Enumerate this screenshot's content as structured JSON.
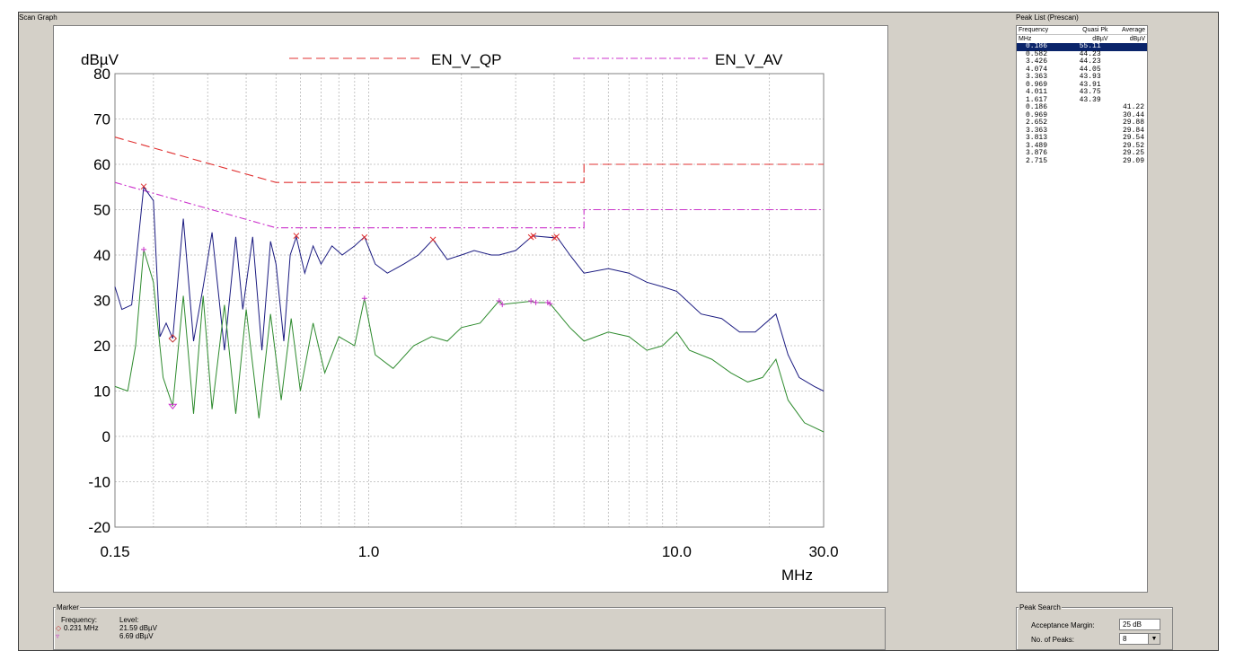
{
  "scan_graph": {
    "title": "Scan Graph"
  },
  "peak_list": {
    "title": "Peak List (Prescan)",
    "headers": [
      "Frequency",
      "Quasi Pk",
      "Average"
    ],
    "units": [
      "MHz",
      "dBµV",
      "dBµV"
    ],
    "rows": [
      [
        "0.186",
        "55.11",
        ""
      ],
      [
        "0.582",
        "44.23",
        ""
      ],
      [
        "3.426",
        "44.23",
        ""
      ],
      [
        "4.074",
        "44.05",
        ""
      ],
      [
        "3.363",
        "43.93",
        ""
      ],
      [
        "0.969",
        "43.91",
        ""
      ],
      [
        "4.011",
        "43.75",
        ""
      ],
      [
        "1.617",
        "43.39",
        ""
      ],
      [
        "0.186",
        "",
        "41.22"
      ],
      [
        "0.969",
        "",
        "30.44"
      ],
      [
        "2.652",
        "",
        "29.88"
      ],
      [
        "3.363",
        "",
        "29.84"
      ],
      [
        "3.813",
        "",
        "29.54"
      ],
      [
        "3.489",
        "",
        "29.52"
      ],
      [
        "3.876",
        "",
        "29.25"
      ],
      [
        "2.715",
        "",
        "29.09"
      ]
    ]
  },
  "marker": {
    "title": "Marker",
    "freq_label": "Frequency:",
    "level_label": "Level:",
    "frequency": "0.231 MHz",
    "level1": "21.59 dBµV",
    "level2": "6.69 dBµV"
  },
  "peak_search": {
    "title": "Peak Search",
    "margin_label": "Acceptance Margin:",
    "margin_value": "25 dB",
    "peaks_label": "No. of Peaks:",
    "peaks_value": "8"
  },
  "chart_data": {
    "type": "line",
    "ylabel": "dBµV",
    "xlabel": "MHz",
    "x_scale": "log",
    "xlim": [
      0.15,
      30.0
    ],
    "ylim": [
      -20,
      80
    ],
    "x_ticks": [
      "0.15",
      "1.0",
      "10.0",
      "30.0"
    ],
    "y_ticks": [
      "80",
      "70",
      "60",
      "50",
      "40",
      "30",
      "20",
      "10",
      "0",
      "-10",
      "-20"
    ],
    "grid": true,
    "legend": [
      "EN_V_QP",
      "EN_V_AV"
    ],
    "limits": [
      {
        "name": "EN_V_QP",
        "color": "#e03030",
        "points": [
          [
            0.15,
            66
          ],
          [
            0.5,
            56
          ],
          [
            5.0,
            56
          ],
          [
            5.0,
            60
          ],
          [
            30.0,
            60
          ]
        ]
      },
      {
        "name": "EN_V_AV",
        "color": "#cc33cc",
        "points": [
          [
            0.15,
            56
          ],
          [
            0.5,
            46
          ],
          [
            5.0,
            46
          ],
          [
            5.0,
            50
          ],
          [
            30.0,
            50
          ]
        ]
      }
    ],
    "series": [
      {
        "color": "#1a1a80",
        "values": [
          [
            0.15,
            33
          ],
          [
            0.158,
            28
          ],
          [
            0.17,
            29
          ],
          [
            0.186,
            55
          ],
          [
            0.2,
            52
          ],
          [
            0.21,
            22
          ],
          [
            0.22,
            25
          ],
          [
            0.231,
            21.6
          ],
          [
            0.25,
            48
          ],
          [
            0.27,
            21
          ],
          [
            0.29,
            33
          ],
          [
            0.31,
            45
          ],
          [
            0.34,
            19
          ],
          [
            0.37,
            44
          ],
          [
            0.39,
            28
          ],
          [
            0.42,
            44
          ],
          [
            0.45,
            19
          ],
          [
            0.48,
            43
          ],
          [
            0.5,
            38
          ],
          [
            0.53,
            21
          ],
          [
            0.556,
            40
          ],
          [
            0.582,
            44
          ],
          [
            0.62,
            36
          ],
          [
            0.66,
            42
          ],
          [
            0.7,
            38
          ],
          [
            0.76,
            42
          ],
          [
            0.82,
            40
          ],
          [
            0.9,
            42
          ],
          [
            0.969,
            44
          ],
          [
            1.05,
            38
          ],
          [
            1.15,
            36
          ],
          [
            1.3,
            38
          ],
          [
            1.45,
            40
          ],
          [
            1.617,
            43.4
          ],
          [
            1.8,
            39
          ],
          [
            2.0,
            40
          ],
          [
            2.2,
            41
          ],
          [
            2.5,
            40
          ],
          [
            2.652,
            40
          ],
          [
            3.0,
            41
          ],
          [
            3.363,
            43.9
          ],
          [
            3.426,
            44.2
          ],
          [
            4.011,
            43.8
          ],
          [
            4.074,
            44.1
          ],
          [
            4.5,
            40
          ],
          [
            5.0,
            36
          ],
          [
            6.0,
            37
          ],
          [
            7.0,
            36
          ],
          [
            8.0,
            34
          ],
          [
            9.0,
            33
          ],
          [
            10.0,
            32
          ],
          [
            12.0,
            27
          ],
          [
            14.0,
            26
          ],
          [
            16.0,
            23
          ],
          [
            18.0,
            23
          ],
          [
            21.0,
            27
          ],
          [
            23.0,
            18
          ],
          [
            25.0,
            13
          ],
          [
            28.0,
            11
          ],
          [
            30.0,
            10
          ]
        ]
      },
      {
        "color": "#2e8b2e",
        "values": [
          [
            0.15,
            11
          ],
          [
            0.165,
            10
          ],
          [
            0.175,
            20
          ],
          [
            0.186,
            41.2
          ],
          [
            0.2,
            34
          ],
          [
            0.215,
            13
          ],
          [
            0.231,
            6.7
          ],
          [
            0.25,
            31
          ],
          [
            0.27,
            5
          ],
          [
            0.29,
            31
          ],
          [
            0.31,
            6
          ],
          [
            0.34,
            29
          ],
          [
            0.37,
            5
          ],
          [
            0.4,
            28
          ],
          [
            0.44,
            4
          ],
          [
            0.48,
            27
          ],
          [
            0.52,
            8
          ],
          [
            0.56,
            26
          ],
          [
            0.6,
            10
          ],
          [
            0.66,
            25
          ],
          [
            0.72,
            14
          ],
          [
            0.8,
            22
          ],
          [
            0.9,
            20
          ],
          [
            0.969,
            30.4
          ],
          [
            1.05,
            18
          ],
          [
            1.2,
            15
          ],
          [
            1.4,
            20
          ],
          [
            1.6,
            22
          ],
          [
            1.8,
            21
          ],
          [
            2.0,
            24
          ],
          [
            2.3,
            25
          ],
          [
            2.652,
            29.9
          ],
          [
            2.715,
            29.1
          ],
          [
            3.363,
            29.8
          ],
          [
            3.489,
            29.5
          ],
          [
            3.813,
            29.5
          ],
          [
            3.876,
            29.3
          ],
          [
            4.5,
            24
          ],
          [
            5.0,
            21
          ],
          [
            6.0,
            23
          ],
          [
            7.0,
            22
          ],
          [
            8.0,
            19
          ],
          [
            9.0,
            20
          ],
          [
            10.0,
            23
          ],
          [
            11.0,
            19
          ],
          [
            13.0,
            17
          ],
          [
            15.0,
            14
          ],
          [
            17.0,
            12
          ],
          [
            19.0,
            13
          ],
          [
            21.0,
            17
          ],
          [
            23.0,
            8
          ],
          [
            26.0,
            3
          ],
          [
            30.0,
            1
          ]
        ]
      }
    ],
    "qp_markers": [
      [
        0.186,
        55.11
      ],
      [
        0.582,
        44.23
      ],
      [
        0.969,
        43.91
      ],
      [
        1.617,
        43.39
      ],
      [
        3.363,
        43.93
      ],
      [
        3.426,
        44.23
      ],
      [
        4.011,
        43.75
      ],
      [
        4.074,
        44.05
      ]
    ],
    "av_markers": [
      [
        0.186,
        41.22
      ],
      [
        0.969,
        30.44
      ],
      [
        2.652,
        29.88
      ],
      [
        2.715,
        29.09
      ],
      [
        3.363,
        29.84
      ],
      [
        3.489,
        29.52
      ],
      [
        3.813,
        29.54
      ],
      [
        3.876,
        29.25
      ]
    ],
    "cursor_markers": [
      [
        0.231,
        21.59
      ],
      [
        0.231,
        6.69
      ]
    ]
  }
}
